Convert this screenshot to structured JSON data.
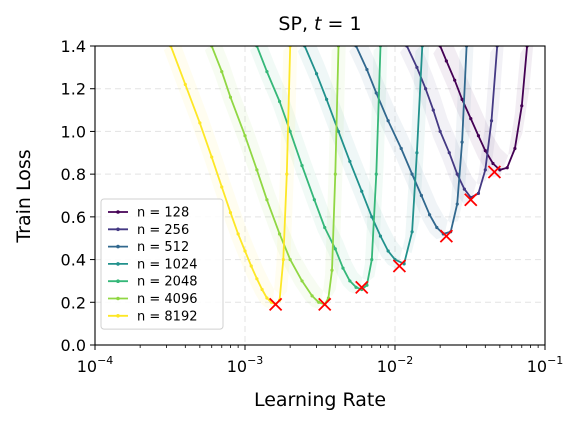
{
  "chart_data": {
    "type": "line",
    "title": "SP, t = 1",
    "title_parts": {
      "prefix": "SP, ",
      "variable": "t",
      "suffix": " = 1"
    },
    "xlabel": "Learning Rate",
    "ylabel": "Train Loss",
    "xscale": "log",
    "xlim": [
      0.0001,
      0.1
    ],
    "ylim": [
      0.0,
      1.4
    ],
    "grid": true,
    "legend_position": "lower-left",
    "x_ticks": [
      {
        "value": 0.0001,
        "base": "10",
        "exp": "−4"
      },
      {
        "value": 0.001,
        "base": "10",
        "exp": "−3"
      },
      {
        "value": 0.01,
        "base": "10",
        "exp": "−2"
      },
      {
        "value": 0.1,
        "base": "10",
        "exp": "−1"
      }
    ],
    "y_ticks": [
      {
        "value": 0.0,
        "label": "0.0"
      },
      {
        "value": 0.2,
        "label": "0.2"
      },
      {
        "value": 0.4,
        "label": "0.4"
      },
      {
        "value": 0.6,
        "label": "0.6"
      },
      {
        "value": 0.8,
        "label": "0.8"
      },
      {
        "value": 1.0,
        "label": "1.0"
      },
      {
        "value": 1.2,
        "label": "1.2"
      },
      {
        "value": 1.4,
        "label": "1.4"
      }
    ],
    "series": [
      {
        "name": "n = 128",
        "color": "#440154",
        "points": [
          [
            0.02,
            1.4
          ],
          [
            0.022,
            1.33
          ],
          [
            0.025,
            1.24
          ],
          [
            0.028,
            1.15
          ],
          [
            0.032,
            1.06
          ],
          [
            0.036,
            0.98
          ],
          [
            0.04,
            0.91
          ],
          [
            0.045,
            0.85
          ],
          [
            0.05,
            0.82
          ],
          [
            0.056,
            0.83
          ],
          [
            0.063,
            0.92
          ],
          [
            0.07,
            1.12
          ],
          [
            0.076,
            1.4
          ]
        ],
        "band": 0.07
      },
      {
        "name": "n = 256",
        "color": "#443983",
        "points": [
          [
            0.012,
            1.4
          ],
          [
            0.014,
            1.3
          ],
          [
            0.016,
            1.2
          ],
          [
            0.018,
            1.1
          ],
          [
            0.02,
            1.0
          ],
          [
            0.023,
            0.9
          ],
          [
            0.026,
            0.8
          ],
          [
            0.029,
            0.73
          ],
          [
            0.032,
            0.69
          ],
          [
            0.036,
            0.71
          ],
          [
            0.04,
            0.82
          ],
          [
            0.044,
            1.05
          ],
          [
            0.048,
            1.4
          ]
        ],
        "band": 0.06
      },
      {
        "name": "n = 512",
        "color": "#31688e",
        "points": [
          [
            0.0055,
            1.4
          ],
          [
            0.0065,
            1.29
          ],
          [
            0.0075,
            1.18
          ],
          [
            0.009,
            1.05
          ],
          [
            0.011,
            0.92
          ],
          [
            0.013,
            0.8
          ],
          [
            0.015,
            0.7
          ],
          [
            0.017,
            0.61
          ],
          [
            0.019,
            0.55
          ],
          [
            0.021,
            0.52
          ],
          [
            0.0235,
            0.53
          ],
          [
            0.026,
            0.66
          ],
          [
            0.028,
            0.95
          ],
          [
            0.03,
            1.4
          ]
        ],
        "band": 0.05
      },
      {
        "name": "n = 1024",
        "color": "#21918c",
        "points": [
          [
            0.0025,
            1.4
          ],
          [
            0.003,
            1.27
          ],
          [
            0.0035,
            1.15
          ],
          [
            0.0042,
            1.0
          ],
          [
            0.005,
            0.86
          ],
          [
            0.006,
            0.72
          ],
          [
            0.007,
            0.6
          ],
          [
            0.008,
            0.51
          ],
          [
            0.009,
            0.44
          ],
          [
            0.01,
            0.4
          ],
          [
            0.0115,
            0.38
          ],
          [
            0.013,
            0.53
          ],
          [
            0.014,
            0.9
          ],
          [
            0.0152,
            1.4
          ]
        ],
        "band": 0.05
      },
      {
        "name": "n = 2048",
        "color": "#35b779",
        "points": [
          [
            0.0012,
            1.4
          ],
          [
            0.0014,
            1.28
          ],
          [
            0.0017,
            1.14
          ],
          [
            0.002,
            1.0
          ],
          [
            0.0024,
            0.84
          ],
          [
            0.0029,
            0.68
          ],
          [
            0.0034,
            0.55
          ],
          [
            0.004,
            0.45
          ],
          [
            0.0045,
            0.36
          ],
          [
            0.005,
            0.3
          ],
          [
            0.0055,
            0.27
          ],
          [
            0.006,
            0.26
          ],
          [
            0.0065,
            0.28
          ],
          [
            0.007,
            0.4
          ],
          [
            0.0075,
            0.8
          ],
          [
            0.008,
            1.4
          ]
        ],
        "band": 0.04
      },
      {
        "name": "n = 4096",
        "color": "#90d743",
        "points": [
          [
            0.0006,
            1.4
          ],
          [
            0.0007,
            1.28
          ],
          [
            0.0008,
            1.16
          ],
          [
            0.001,
            0.98
          ],
          [
            0.0012,
            0.82
          ],
          [
            0.0014,
            0.68
          ],
          [
            0.0017,
            0.52
          ],
          [
            0.002,
            0.4
          ],
          [
            0.0024,
            0.3
          ],
          [
            0.0028,
            0.23
          ],
          [
            0.0031,
            0.2
          ],
          [
            0.0034,
            0.19
          ],
          [
            0.0036,
            0.22
          ],
          [
            0.0038,
            0.35
          ],
          [
            0.004,
            0.8
          ],
          [
            0.0042,
            1.4
          ]
        ],
        "band": 0.04
      },
      {
        "name": "n = 8192",
        "color": "#fde725",
        "points": [
          [
            0.00032,
            1.4
          ],
          [
            0.0004,
            1.22
          ],
          [
            0.0005,
            1.04
          ],
          [
            0.0006,
            0.88
          ],
          [
            0.0007,
            0.74
          ],
          [
            0.0008,
            0.62
          ],
          [
            0.0009,
            0.52
          ],
          [
            0.001,
            0.44
          ],
          [
            0.0011,
            0.37
          ],
          [
            0.0012,
            0.31
          ],
          [
            0.0013,
            0.26
          ],
          [
            0.0014,
            0.22
          ],
          [
            0.0015,
            0.2
          ],
          [
            0.0016,
            0.19
          ],
          [
            0.0017,
            0.21
          ],
          [
            0.0018,
            0.4
          ],
          [
            0.0019,
            0.8
          ],
          [
            0.002,
            1.4
          ]
        ],
        "band": 0.04
      }
    ],
    "minima": [
      {
        "x": 0.046,
        "y": 0.81
      },
      {
        "x": 0.032,
        "y": 0.68
      },
      {
        "x": 0.022,
        "y": 0.51
      },
      {
        "x": 0.0107,
        "y": 0.37
      },
      {
        "x": 0.006,
        "y": 0.27
      },
      {
        "x": 0.0034,
        "y": 0.19
      },
      {
        "x": 0.0016,
        "y": 0.19
      }
    ],
    "minima_color": "#ff0000"
  }
}
